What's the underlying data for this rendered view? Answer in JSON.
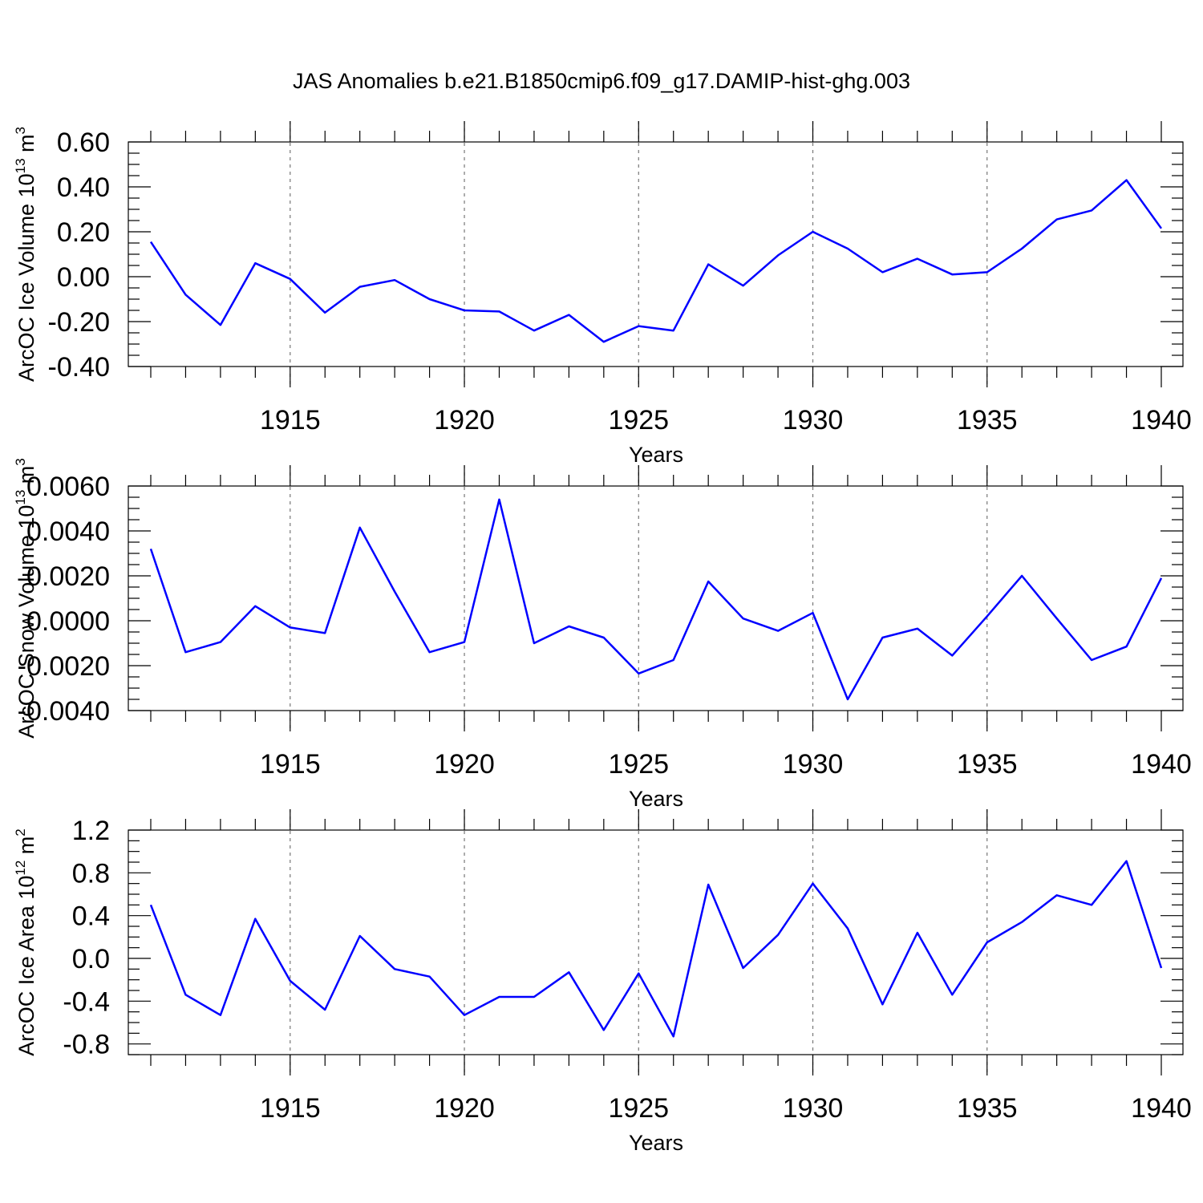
{
  "title": "JAS Anomalies b.e21.B1850cmip6.f09_g17.DAMIP-hist-ghg.003",
  "line_color": "#0000ff",
  "chart_data": [
    {
      "type": "line",
      "ylabel_main": "ArcOC Ice Volume 10",
      "ylabel_exp": "13",
      "ylabel_tail": " m",
      "ylabel_unit_exp": "3",
      "xlabel": "Years",
      "xlim": [
        1911,
        1940
      ],
      "ylim": [
        -0.4,
        0.6
      ],
      "yticks": [
        -0.4,
        -0.2,
        0.0,
        0.2,
        0.4,
        0.6
      ],
      "ytick_labels": [
        "-0.40",
        "-0.20",
        "0.00",
        "0.20",
        "0.40",
        "0.60"
      ],
      "xticks": [
        1915,
        1920,
        1925,
        1930,
        1935,
        1940
      ],
      "xtick_labels": [
        "1915",
        "1920",
        "1925",
        "1930",
        "1935",
        "1940"
      ],
      "x": [
        1911,
        1912,
        1913,
        1914,
        1915,
        1916,
        1917,
        1918,
        1919,
        1920,
        1921,
        1922,
        1923,
        1924,
        1925,
        1926,
        1927,
        1928,
        1929,
        1930,
        1931,
        1932,
        1933,
        1934,
        1935,
        1936,
        1937,
        1938,
        1939,
        1940
      ],
      "values": [
        0.155,
        -0.08,
        -0.215,
        0.06,
        -0.01,
        -0.16,
        -0.045,
        -0.015,
        -0.1,
        -0.15,
        -0.155,
        -0.24,
        -0.17,
        -0.29,
        -0.22,
        -0.24,
        0.055,
        -0.04,
        0.095,
        0.2,
        0.125,
        0.02,
        0.08,
        0.01,
        0.02,
        0.125,
        0.255,
        0.295,
        0.43,
        0.215
      ]
    },
    {
      "type": "line",
      "ylabel_main": "ArcOC Snow Volume 10",
      "ylabel_exp": "13",
      "ylabel_tail": " m",
      "ylabel_unit_exp": "3",
      "xlabel": "Years",
      "xlim": [
        1911,
        1940
      ],
      "ylim": [
        -0.004,
        0.006
      ],
      "yticks": [
        -0.004,
        -0.002,
        0.0,
        0.002,
        0.004,
        0.006
      ],
      "ytick_labels": [
        "-0.0040",
        "-0.0020",
        "0.0000",
        "0.0020",
        "0.0040",
        "0.0060"
      ],
      "xticks": [
        1915,
        1920,
        1925,
        1930,
        1935,
        1940
      ],
      "xtick_labels": [
        "1915",
        "1920",
        "1925",
        "1930",
        "1935",
        "1940"
      ],
      "x": [
        1911,
        1912,
        1913,
        1914,
        1915,
        1916,
        1917,
        1918,
        1919,
        1920,
        1921,
        1922,
        1923,
        1924,
        1925,
        1926,
        1927,
        1928,
        1929,
        1930,
        1931,
        1932,
        1933,
        1934,
        1935,
        1936,
        1937,
        1938,
        1939,
        1940
      ],
      "values": [
        0.0032,
        -0.0014,
        -0.00095,
        0.00065,
        -0.0003,
        -0.00055,
        0.00415,
        0.0013,
        -0.0014,
        -0.00095,
        0.0054,
        -0.001,
        -0.00025,
        -0.00075,
        -0.00235,
        -0.00175,
        0.00175,
        0.0001,
        -0.00045,
        0.00035,
        -0.0035,
        -0.00075,
        -0.00035,
        -0.00155,
        0.0002,
        0.002,
        0.0001,
        -0.00175,
        -0.00115,
        0.0019
      ]
    },
    {
      "type": "line",
      "ylabel_main": "ArcOC Ice Area 10",
      "ylabel_exp": "12",
      "ylabel_tail": " m",
      "ylabel_unit_exp": "2",
      "xlabel": "Years",
      "xlim": [
        1911,
        1940
      ],
      "ylim": [
        -0.9,
        1.2
      ],
      "yticks": [
        -0.8,
        -0.4,
        0.0,
        0.4,
        0.8,
        1.2
      ],
      "ytick_labels": [
        "-0.8",
        "-0.4",
        "0.0",
        "0.4",
        "0.8",
        "1.2"
      ],
      "xticks": [
        1915,
        1920,
        1925,
        1930,
        1935,
        1940
      ],
      "xtick_labels": [
        "1915",
        "1920",
        "1925",
        "1930",
        "1935",
        "1940"
      ],
      "x": [
        1911,
        1912,
        1913,
        1914,
        1915,
        1916,
        1917,
        1918,
        1919,
        1920,
        1921,
        1922,
        1923,
        1924,
        1925,
        1926,
        1927,
        1928,
        1929,
        1930,
        1931,
        1932,
        1933,
        1934,
        1935,
        1936,
        1937,
        1938,
        1939,
        1940
      ],
      "values": [
        0.5,
        -0.34,
        -0.53,
        0.37,
        -0.21,
        -0.48,
        0.21,
        -0.1,
        -0.17,
        -0.53,
        -0.36,
        -0.36,
        -0.13,
        -0.67,
        -0.14,
        -0.73,
        0.69,
        -0.09,
        0.22,
        0.7,
        0.28,
        -0.43,
        0.24,
        -0.34,
        0.15,
        0.34,
        0.59,
        0.5,
        0.91,
        -0.09
      ]
    }
  ]
}
